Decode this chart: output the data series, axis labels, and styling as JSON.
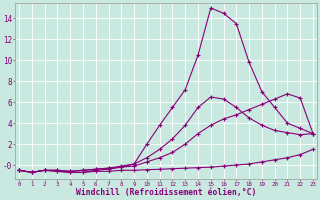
{
  "bg_color": "#c8e8e0",
  "line_color": "#880077",
  "grid_color": "#ffffff",
  "xlim": [
    -0.3,
    23.3
  ],
  "ylim": [
    -1.3,
    15.5
  ],
  "xticks": [
    0,
    1,
    2,
    3,
    4,
    5,
    6,
    7,
    8,
    9,
    10,
    11,
    12,
    13,
    14,
    15,
    16,
    17,
    18,
    19,
    20,
    21,
    22,
    23
  ],
  "yticks": [
    0,
    2,
    4,
    6,
    8,
    10,
    12,
    14
  ],
  "ytick_labels": [
    "-0",
    "2",
    "4",
    "6",
    "8",
    "10",
    "12",
    "14"
  ],
  "xlabel": "Windchill (Refroidissement éolien,°C)",
  "line1_x": [
    0,
    1,
    2,
    3,
    4,
    5,
    6,
    7,
    8,
    9,
    10,
    11,
    12,
    13,
    14,
    15,
    16,
    17,
    18,
    19,
    20,
    21,
    22,
    23
  ],
  "line1_y": [
    -0.5,
    -0.7,
    -0.5,
    -0.6,
    -0.7,
    -0.7,
    -0.6,
    -0.6,
    -0.5,
    -0.5,
    -0.45,
    -0.4,
    -0.35,
    -0.3,
    -0.25,
    -0.2,
    -0.1,
    0.0,
    0.1,
    0.3,
    0.5,
    0.7,
    1.0,
    1.5
  ],
  "line2_x": [
    0,
    1,
    2,
    3,
    4,
    5,
    6,
    7,
    8,
    9,
    10,
    11,
    12,
    13,
    14,
    15,
    16,
    17,
    18,
    19,
    20,
    21,
    22,
    23
  ],
  "line2_y": [
    -0.5,
    -0.7,
    -0.5,
    -0.5,
    -0.6,
    -0.5,
    -0.4,
    -0.3,
    -0.2,
    -0.1,
    0.3,
    0.7,
    1.2,
    2.0,
    3.0,
    3.8,
    4.4,
    4.8,
    5.3,
    5.8,
    6.3,
    6.8,
    6.4,
    3.0
  ],
  "line3_x": [
    0,
    1,
    2,
    3,
    4,
    5,
    6,
    7,
    8,
    9,
    10,
    11,
    12,
    13,
    14,
    15,
    16,
    17,
    18,
    19,
    20,
    21,
    22,
    23
  ],
  "line3_y": [
    -0.5,
    -0.7,
    -0.5,
    -0.5,
    -0.6,
    -0.5,
    -0.4,
    -0.3,
    -0.1,
    0.1,
    0.7,
    1.5,
    2.5,
    3.8,
    5.5,
    6.5,
    6.3,
    5.5,
    4.5,
    3.8,
    3.3,
    3.1,
    2.9,
    3.0
  ],
  "line4_x": [
    0,
    1,
    2,
    3,
    4,
    5,
    6,
    7,
    8,
    9,
    10,
    11,
    12,
    13,
    14,
    15,
    16,
    17,
    18,
    19,
    20,
    21,
    22,
    23
  ],
  "line4_y": [
    -0.5,
    -0.7,
    -0.5,
    -0.6,
    -0.7,
    -0.7,
    -0.5,
    -0.4,
    -0.2,
    0.1,
    2.0,
    3.8,
    5.5,
    7.2,
    10.5,
    15.0,
    14.5,
    13.5,
    9.8,
    7.0,
    5.5,
    4.0,
    3.5,
    3.0
  ]
}
